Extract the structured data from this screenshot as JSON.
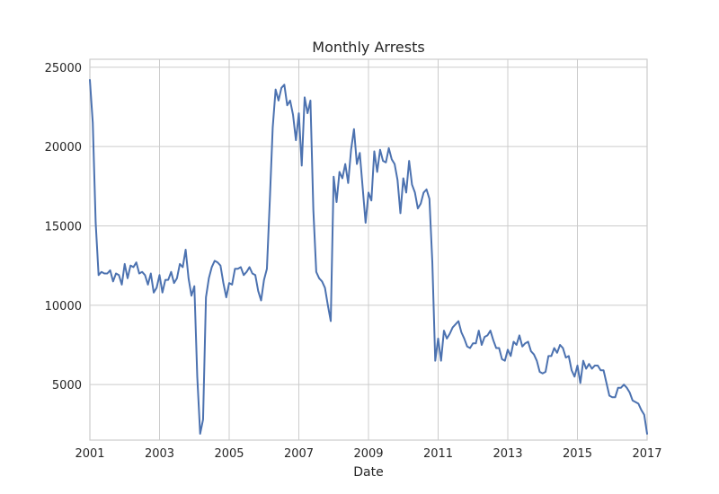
{
  "chart_data": {
    "type": "line",
    "title": "Monthly Arrests",
    "xlabel": "Date",
    "ylabel": "",
    "xlim": [
      "2001-01",
      "2017-01"
    ],
    "ylim": [
      1500,
      25500
    ],
    "grid": true,
    "legend": "none",
    "xticks": [
      "2001",
      "2003",
      "2005",
      "2007",
      "2009",
      "2011",
      "2013",
      "2015",
      "2017"
    ],
    "yticks": [
      5000,
      10000,
      15000,
      20000,
      25000
    ],
    "series": [
      {
        "color": "#4c72b0",
        "x": [
          "2001-01",
          "2001-02",
          "2001-03",
          "2001-04",
          "2001-05",
          "2001-06",
          "2001-07",
          "2001-08",
          "2001-09",
          "2001-10",
          "2001-11",
          "2001-12",
          "2002-01",
          "2002-02",
          "2002-03",
          "2002-04",
          "2002-05",
          "2002-06",
          "2002-07",
          "2002-08",
          "2002-09",
          "2002-10",
          "2002-11",
          "2002-12",
          "2003-01",
          "2003-02",
          "2003-03",
          "2003-04",
          "2003-05",
          "2003-06",
          "2003-07",
          "2003-08",
          "2003-09",
          "2003-10",
          "2003-11",
          "2003-12",
          "2004-01",
          "2004-02",
          "2004-03",
          "2004-04",
          "2004-05",
          "2004-06",
          "2004-07",
          "2004-08",
          "2004-09",
          "2004-10",
          "2004-11",
          "2004-12",
          "2005-01",
          "2005-02",
          "2005-03",
          "2005-04",
          "2005-05",
          "2005-06",
          "2005-07",
          "2005-08",
          "2005-09",
          "2005-10",
          "2005-11",
          "2005-12",
          "2006-01",
          "2006-02",
          "2006-03",
          "2006-04",
          "2006-05",
          "2006-06",
          "2006-07",
          "2006-08",
          "2006-09",
          "2006-10",
          "2006-11",
          "2006-12",
          "2007-01",
          "2007-02",
          "2007-03",
          "2007-04",
          "2007-05",
          "2007-06",
          "2007-07",
          "2007-08",
          "2007-09",
          "2007-10",
          "2007-11",
          "2007-12",
          "2008-01",
          "2008-02",
          "2008-03",
          "2008-04",
          "2008-05",
          "2008-06",
          "2008-07",
          "2008-08",
          "2008-09",
          "2008-10",
          "2008-11",
          "2008-12",
          "2009-01",
          "2009-02",
          "2009-03",
          "2009-04",
          "2009-05",
          "2009-06",
          "2009-07",
          "2009-08",
          "2009-09",
          "2009-10",
          "2009-11",
          "2009-12",
          "2010-01",
          "2010-02",
          "2010-03",
          "2010-04",
          "2010-05",
          "2010-06",
          "2010-07",
          "2010-08",
          "2010-09",
          "2010-10",
          "2010-11",
          "2010-12",
          "2011-01",
          "2011-02",
          "2011-03",
          "2011-04",
          "2011-05",
          "2011-06",
          "2011-07",
          "2011-08",
          "2011-09",
          "2011-10",
          "2011-11",
          "2011-12",
          "2012-01",
          "2012-02",
          "2012-03",
          "2012-04",
          "2012-05",
          "2012-06",
          "2012-07",
          "2012-08",
          "2012-09",
          "2012-10",
          "2012-11",
          "2012-12",
          "2013-01",
          "2013-02",
          "2013-03",
          "2013-04",
          "2013-05",
          "2013-06",
          "2013-07",
          "2013-08",
          "2013-09",
          "2013-10",
          "2013-11",
          "2013-12",
          "2014-01",
          "2014-02",
          "2014-03",
          "2014-04",
          "2014-05",
          "2014-06",
          "2014-07",
          "2014-08",
          "2014-09",
          "2014-10",
          "2014-11",
          "2014-12",
          "2015-01",
          "2015-02",
          "2015-03",
          "2015-04",
          "2015-05",
          "2015-06",
          "2015-07",
          "2015-08",
          "2015-09",
          "2015-10",
          "2015-11",
          "2015-12",
          "2016-01",
          "2016-02",
          "2016-03",
          "2016-04",
          "2016-05",
          "2016-06",
          "2016-07",
          "2016-08",
          "2016-09",
          "2016-10",
          "2016-11",
          "2016-12",
          "2017-01"
        ],
        "values": [
          24200,
          21500,
          15200,
          11900,
          12100,
          12000,
          12000,
          12200,
          11500,
          12000,
          11900,
          11300,
          12600,
          11700,
          12500,
          12400,
          12700,
          12000,
          12100,
          11900,
          11300,
          12000,
          10800,
          11100,
          11900,
          10800,
          11600,
          11600,
          12100,
          11400,
          11700,
          12600,
          12400,
          13500,
          11700,
          10600,
          11200,
          5500,
          1900,
          2800,
          10500,
          11700,
          12400,
          12800,
          12700,
          12500,
          11400,
          10500,
          11400,
          11300,
          12300,
          12300,
          12400,
          11900,
          12100,
          12400,
          12000,
          11900,
          10900,
          10300,
          11600,
          12300,
          16600,
          21200,
          23600,
          22900,
          23700,
          23900,
          22600,
          22900,
          22000,
          20400,
          22100,
          18800,
          23100,
          22100,
          22900,
          16000,
          12100,
          11700,
          11500,
          11100,
          10000,
          9000,
          18100,
          16500,
          18400,
          18000,
          18900,
          17700,
          19800,
          21100,
          18900,
          19600,
          17400,
          15200,
          17100,
          16600,
          19700,
          18400,
          19800,
          19100,
          19000,
          19900,
          19200,
          18900,
          17900,
          15800,
          18000,
          17100,
          19100,
          17600,
          17100,
          16100,
          16400,
          17100,
          17300,
          16700,
          12700,
          6500,
          7900,
          6500,
          8400,
          7900,
          8200,
          8600,
          8800,
          9000,
          8300,
          7900,
          7400,
          7300,
          7600,
          7600,
          8400,
          7500,
          8000,
          8100,
          8400,
          7800,
          7300,
          7300,
          6600,
          6500,
          7200,
          6800,
          7700,
          7500,
          8100,
          7400,
          7600,
          7700,
          7100,
          6900,
          6500,
          5800,
          5700,
          5800,
          6800,
          6800,
          7300,
          7000,
          7500,
          7300,
          6700,
          6800,
          5900,
          5500,
          6200,
          5100,
          6500,
          6000,
          6300,
          6000,
          6200,
          6200,
          5900,
          5900,
          5100,
          4300,
          4200,
          4200,
          4800,
          4800,
          5000,
          4800,
          4500,
          4000,
          3900,
          3800,
          3400,
          3100,
          1900
        ]
      }
    ]
  }
}
